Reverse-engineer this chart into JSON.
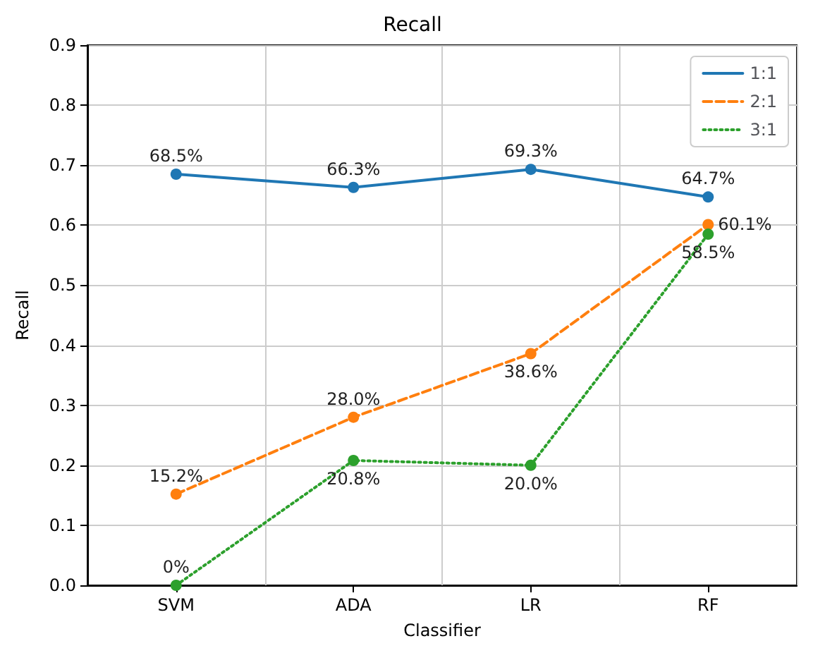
{
  "chart_data": {
    "type": "line",
    "title": "Recall",
    "xlabel": "Classifier",
    "ylabel": "Recall",
    "categories": [
      "SVM",
      "ADA",
      "LR",
      "RF"
    ],
    "series": [
      {
        "name": "1:1",
        "color": "#1f77b4",
        "line_style": "solid",
        "marker": "circle",
        "values": [
          0.685,
          0.663,
          0.693,
          0.647
        ],
        "value_labels": [
          "68.5%",
          "66.3%",
          "69.3%",
          "64.7%"
        ]
      },
      {
        "name": "2:1",
        "color": "#ff7f0e",
        "line_style": "dashed",
        "marker": "circle",
        "values": [
          0.152,
          0.28,
          0.386,
          0.601
        ],
        "value_labels": [
          "15.2%",
          "28.0%",
          "38.6%",
          "60.1%"
        ]
      },
      {
        "name": "3:1",
        "color": "#2ca02c",
        "line_style": "dotted",
        "marker": "circle",
        "values": [
          0,
          0.208,
          0.2,
          0.585
        ],
        "value_labels": [
          "0%",
          "20.8%",
          "20.0%",
          "58.5%"
        ]
      }
    ],
    "ylim": [
      0,
      0.9
    ],
    "yticks": [
      {
        "value": 0,
        "label": "0.0"
      },
      0.1,
      0.2,
      0.3,
      0.4,
      0.5,
      0.6,
      0.7,
      0.8,
      0.9
    ],
    "grid": true,
    "legend": "top right"
  }
}
